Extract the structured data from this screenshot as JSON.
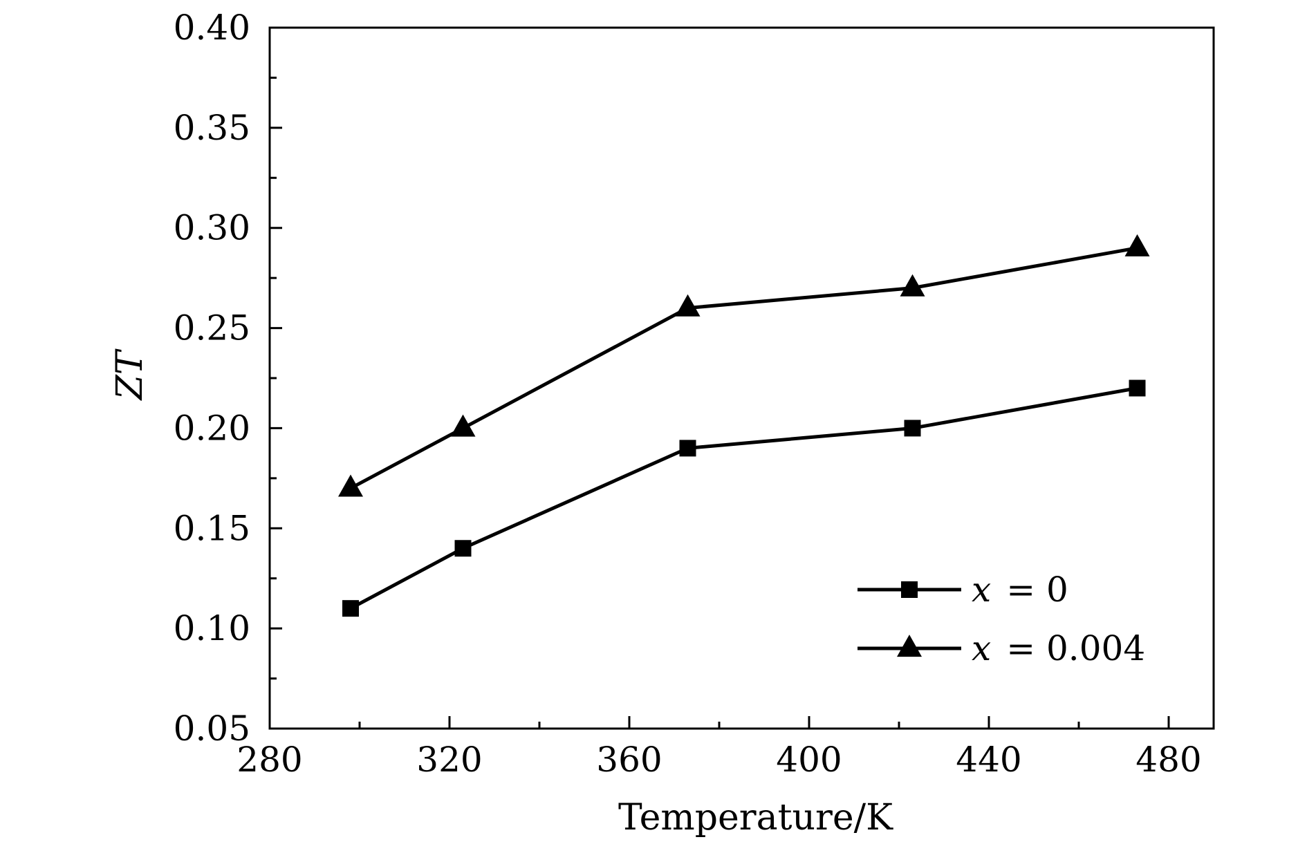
{
  "chart_data": {
    "type": "line",
    "title": "",
    "xlabel": "Temperature/K",
    "ylabel": "ZT",
    "xlim": [
      280,
      490
    ],
    "ylim": [
      0.05,
      0.4
    ],
    "x_ticks": [
      "280",
      "320",
      "360",
      "400",
      "440",
      "480"
    ],
    "y_ticks": [
      "0.05",
      "0.10",
      "0.15",
      "0.20",
      "0.25",
      "0.30",
      "0.35",
      "0.40"
    ],
    "grid": false,
    "legend_position": "bottom-right",
    "colors": {
      "line": "#000000",
      "axes": "#000000",
      "background": "#ffffff"
    },
    "series": [
      {
        "name": "x = 0",
        "name_var": "x",
        "name_value": "= 0",
        "marker": "square",
        "x": [
          298,
          323,
          373,
          423,
          473
        ],
        "y": [
          0.11,
          0.14,
          0.19,
          0.2,
          0.22
        ]
      },
      {
        "name": "x = 0.004",
        "name_var": "x",
        "name_value": "= 0.004",
        "marker": "triangle",
        "x": [
          298,
          323,
          373,
          423,
          473
        ],
        "y": [
          0.17,
          0.2,
          0.26,
          0.27,
          0.29
        ]
      }
    ]
  }
}
